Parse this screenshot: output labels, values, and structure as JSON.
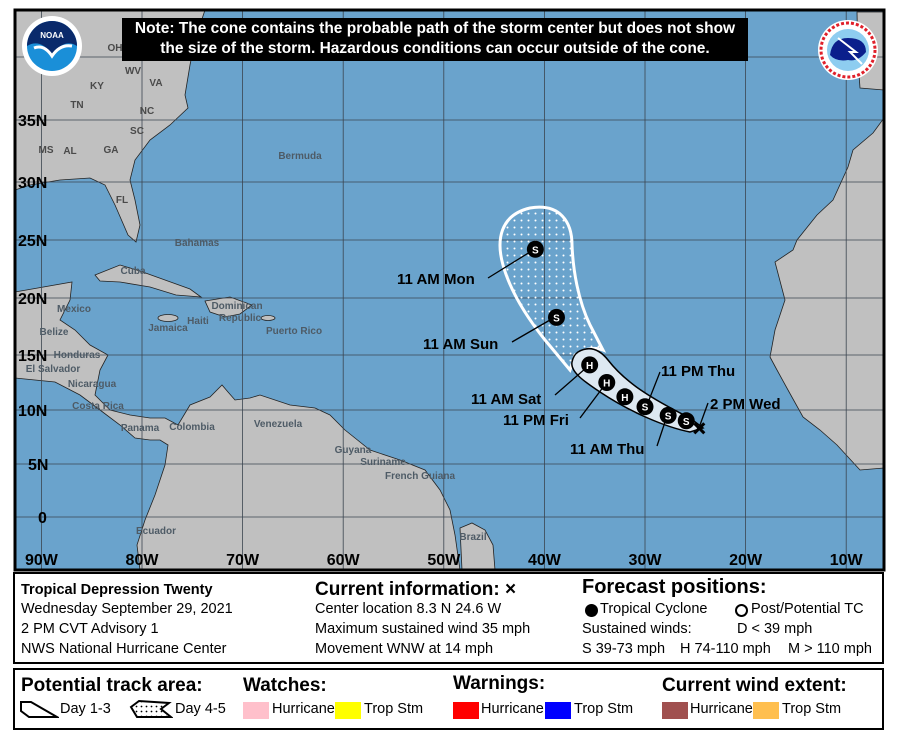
{
  "note": {
    "line1": "Note: The cone contains the probable path of the storm center but does not show",
    "line2": "the size of the storm. Hazardous conditions can occur outside of the cone."
  },
  "logos": {
    "left": "NOAA",
    "right": "NATIONAL WEATHER SERVICE"
  },
  "colors": {
    "ocean": "#6aa3cc",
    "land": "#c0c0c0",
    "cone_day13": "#dde8f1",
    "tropical_cyclone": "#000000"
  },
  "map": {
    "lat_labels": [
      "35N",
      "30N",
      "25N",
      "20N",
      "15N",
      "10N",
      "5N",
      "0"
    ],
    "lon_labels": [
      "90W",
      "80W",
      "70W",
      "60W",
      "50W",
      "40W",
      "30W",
      "20W",
      "10W"
    ],
    "states": [
      "OH",
      "WV",
      "KY",
      "VA",
      "TN",
      "NC",
      "SC",
      "MS",
      "AL",
      "GA",
      "FL"
    ],
    "places": [
      "Bermuda",
      "Bahamas",
      "Cuba",
      "Mexico",
      "Belize",
      "Jamaica",
      "Haiti",
      "Dominican",
      "Republic",
      "Puerto Rico",
      "Honduras",
      "El Salvador",
      "Nicaragua",
      "Costa Rica",
      "Panama",
      "Colombia",
      "Venezuela",
      "Guyana",
      "Suriname",
      "French Guiana",
      "Ecuador",
      "Brazil"
    ]
  },
  "storm": {
    "current": {
      "label": "2 PM Wed",
      "lat": 8.3,
      "lon": -24.6,
      "marker": "x"
    },
    "forecast": [
      {
        "lat": 9.0,
        "lon": -25.9,
        "type": "S"
      },
      {
        "lat": 9.5,
        "lon": -27.7,
        "type": "S",
        "label": "11 AM Thu"
      },
      {
        "lat": 10.3,
        "lon": -30.0,
        "type": "S",
        "label": "11 PM Thu"
      },
      {
        "lat": 11.2,
        "lon": -32.0,
        "type": "H"
      },
      {
        "lat": 12.5,
        "lon": -33.8,
        "type": "H",
        "label": "11 PM Fri"
      },
      {
        "lat": 14.1,
        "lon": -35.5,
        "type": "H",
        "label": "11 AM Sat"
      },
      {
        "lat": 18.3,
        "lon": -38.8,
        "type": "S",
        "label": "11 AM Sun"
      },
      {
        "lat": 24.2,
        "lon": -40.9,
        "type": "S",
        "label": "11 AM Mon"
      }
    ]
  },
  "info": {
    "storm_name": "Tropical Depression Twenty",
    "date": "Wednesday September 29, 2021",
    "advisory": "2 PM CVT Advisory 1",
    "agency": "NWS National Hurricane Center",
    "current_header": "Current information: ×",
    "center_location": "Center location 8.3 N 24.6 W",
    "max_wind": "Maximum sustained wind 35 mph",
    "movement": "Movement WNW at 14 mph",
    "forecast_header": "Forecast positions:",
    "tropical_cyclone": "Tropical Cyclone",
    "post_potential": "Post/Potential TC",
    "sustained_winds": "Sustained winds:",
    "d_range": "D < 39 mph",
    "s_range": "S 39-73 mph",
    "h_range": "H 74-110 mph",
    "m_range": "M > 110 mph"
  },
  "legend": {
    "track_header": "Potential track area:",
    "day13": "Day 1-3",
    "day45": "Day 4-5",
    "watches_header": "Watches:",
    "warnings_header": "Warnings:",
    "wind_header": "Current wind extent:",
    "hurricane": "Hurricane",
    "trop_stm": "Trop Stm",
    "watch_colors": {
      "hurricane": "#ffc0cb",
      "trop_stm": "#ffff00"
    },
    "warning_colors": {
      "hurricane": "#ff0000",
      "trop_stm": "#0000ff"
    },
    "wind_colors": {
      "hurricane": "#a0504f",
      "trop_stm": "#ffbf4f"
    }
  }
}
